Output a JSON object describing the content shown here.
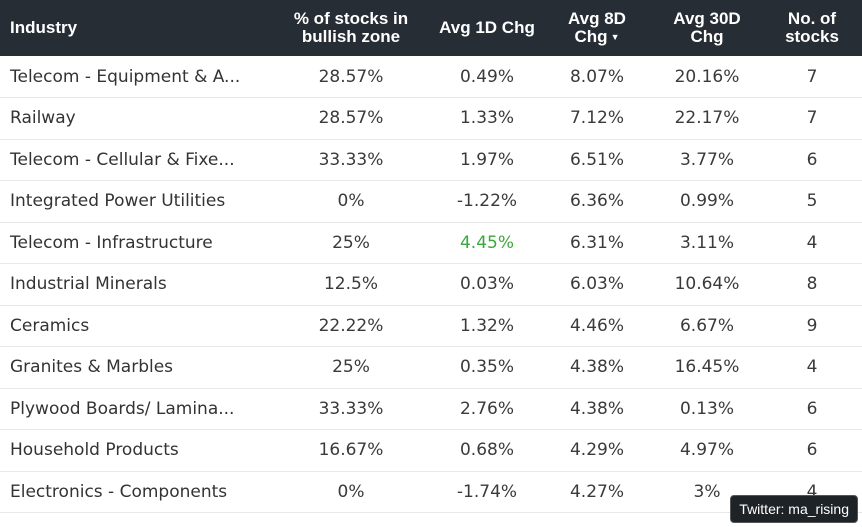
{
  "table": {
    "headers": {
      "industry": "Industry",
      "pct_bullish": "% of stocks in bullish zone",
      "avg_1d": "Avg 1D Chg",
      "avg_8d": "Avg 8D Chg",
      "avg_30d": "Avg 30D Chg",
      "num_stocks": "No. of stocks"
    },
    "sorted_column": "avg_8d",
    "sort_direction": "descending",
    "rows": [
      {
        "industry": "Telecom - Equipment & A...",
        "pct_bullish": "28.57%",
        "avg_1d": "0.49%",
        "avg_8d": "8.07%",
        "avg_30d": "20.16%",
        "num_stocks": "7"
      },
      {
        "industry": "Railway",
        "pct_bullish": "28.57%",
        "avg_1d": "1.33%",
        "avg_8d": "7.12%",
        "avg_30d": "22.17%",
        "num_stocks": "7"
      },
      {
        "industry": "Telecom - Cellular & Fixe...",
        "pct_bullish": "33.33%",
        "avg_1d": "1.97%",
        "avg_8d": "6.51%",
        "avg_30d": "3.77%",
        "num_stocks": "6"
      },
      {
        "industry": "Integrated Power Utilities",
        "pct_bullish": "0%",
        "avg_1d": "-1.22%",
        "avg_8d": "6.36%",
        "avg_30d": "0.99%",
        "num_stocks": "5"
      },
      {
        "industry": "Telecom - Infrastructure",
        "pct_bullish": "25%",
        "avg_1d": "4.45%",
        "avg_8d": "6.31%",
        "avg_30d": "3.11%",
        "num_stocks": "4"
      },
      {
        "industry": "Industrial Minerals",
        "pct_bullish": "12.5%",
        "avg_1d": "0.03%",
        "avg_8d": "6.03%",
        "avg_30d": "10.64%",
        "num_stocks": "8"
      },
      {
        "industry": "Ceramics",
        "pct_bullish": "22.22%",
        "avg_1d": "1.32%",
        "avg_8d": "4.46%",
        "avg_30d": "6.67%",
        "num_stocks": "9"
      },
      {
        "industry": "Granites & Marbles",
        "pct_bullish": "25%",
        "avg_1d": "0.35%",
        "avg_8d": "4.38%",
        "avg_30d": "16.45%",
        "num_stocks": "4"
      },
      {
        "industry": "Plywood Boards/ Lamina...",
        "pct_bullish": "33.33%",
        "avg_1d": "2.76%",
        "avg_8d": "4.38%",
        "avg_30d": "0.13%",
        "num_stocks": "6"
      },
      {
        "industry": "Household Products",
        "pct_bullish": "16.67%",
        "avg_1d": "0.68%",
        "avg_8d": "4.29%",
        "avg_30d": "4.97%",
        "num_stocks": "6"
      },
      {
        "industry": "Electronics - Components",
        "pct_bullish": "0%",
        "avg_1d": "-1.74%",
        "avg_8d": "4.27%",
        "avg_30d": "3%",
        "num_stocks": "4"
      }
    ],
    "highlight_color": "#3ba83b",
    "header_bg": "#272d34"
  },
  "watermark": {
    "text": "Twitter: ma_rising"
  }
}
